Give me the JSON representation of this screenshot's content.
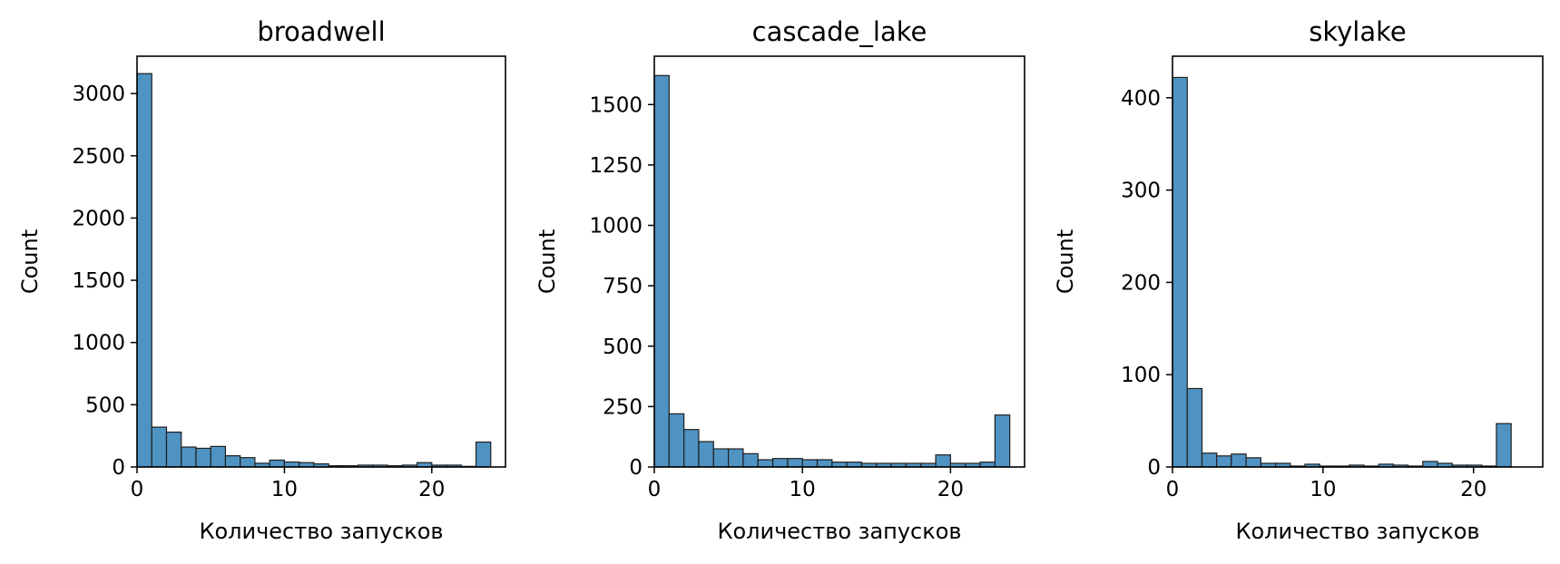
{
  "chart_data": [
    {
      "type": "bar",
      "title": "broadwell",
      "xlabel": "Количество запусков",
      "ylabel": "Count",
      "xlim": [
        0,
        25
      ],
      "ylim": [
        0,
        3300
      ],
      "xticks": [
        0,
        10,
        20
      ],
      "yticks": [
        0,
        500,
        1000,
        1500,
        2000,
        2500,
        3000
      ],
      "bin_edges": [
        0,
        1,
        2,
        3,
        4,
        5,
        6,
        7,
        8,
        9,
        10,
        11,
        12,
        13,
        14,
        15,
        16,
        17,
        18,
        19,
        20,
        21,
        22,
        23,
        24
      ],
      "values": [
        3160,
        320,
        280,
        160,
        150,
        165,
        90,
        75,
        30,
        55,
        40,
        35,
        25,
        10,
        10,
        15,
        15,
        10,
        15,
        35,
        15,
        15,
        5,
        200
      ],
      "grid": false
    },
    {
      "type": "bar",
      "title": "cascade_lake",
      "xlabel": "Количество запусков",
      "ylabel": "Count",
      "xlim": [
        0,
        25
      ],
      "ylim": [
        0,
        1700
      ],
      "xticks": [
        0,
        10,
        20
      ],
      "yticks": [
        0,
        250,
        500,
        750,
        1000,
        1250,
        1500
      ],
      "bin_edges": [
        0,
        1,
        2,
        3,
        4,
        5,
        6,
        7,
        8,
        9,
        10,
        11,
        12,
        13,
        14,
        15,
        16,
        17,
        18,
        19,
        20,
        21,
        22,
        23,
        24
      ],
      "values": [
        1620,
        220,
        155,
        105,
        75,
        75,
        55,
        30,
        35,
        35,
        30,
        30,
        20,
        20,
        15,
        15,
        15,
        15,
        15,
        50,
        15,
        15,
        20,
        215
      ],
      "grid": false
    },
    {
      "type": "bar",
      "title": "skylake",
      "xlabel": "Количество запусков",
      "ylabel": "Count",
      "xlim": [
        0,
        24.6
      ],
      "ylim": [
        0,
        445
      ],
      "xticks": [
        0,
        10,
        20
      ],
      "yticks": [
        0,
        100,
        200,
        300,
        400
      ],
      "bin_edges": [
        0,
        0.98,
        1.96,
        2.93,
        3.91,
        4.89,
        5.87,
        6.85,
        7.83,
        8.8,
        9.78,
        10.76,
        11.74,
        12.72,
        13.7,
        14.67,
        15.65,
        16.63,
        17.61,
        18.59,
        19.57,
        20.54,
        21.52,
        22.5
      ],
      "values": [
        422,
        85,
        15,
        12,
        14,
        10,
        4,
        4,
        1,
        3,
        1,
        1,
        2,
        1,
        3,
        2,
        1,
        6,
        4,
        2,
        2,
        1,
        47
      ],
      "grid": false
    }
  ]
}
